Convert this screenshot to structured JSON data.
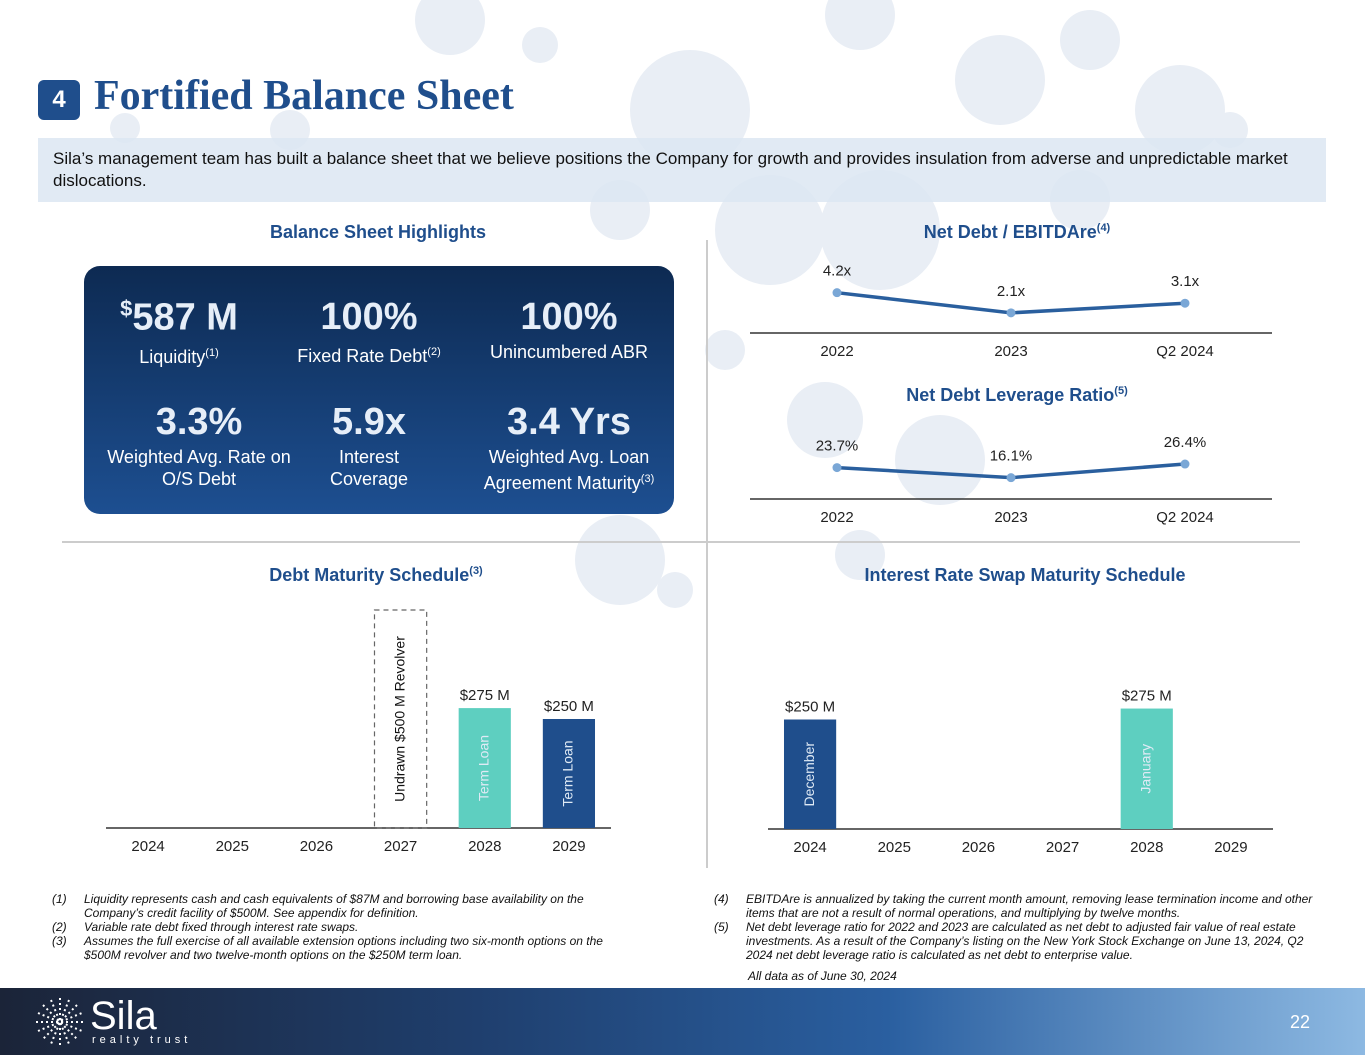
{
  "header": {
    "number": "4",
    "title": "Fortified Balance Sheet"
  },
  "intro": "Sila’s management team has built a balance sheet that we believe positions the Company for growth and provides insulation from adverse and unpredictable market dislocations.",
  "highlights": {
    "title": "Balance Sheet Highlights",
    "items": [
      {
        "prefix": "$",
        "value": "587 M",
        "label": "Liquidity",
        "note": "(1)"
      },
      {
        "value": "100%",
        "label": "Fixed Rate Debt",
        "note": "(2)"
      },
      {
        "value": "100%",
        "label": "Unincumbered ABR"
      },
      {
        "value": "3.3%",
        "label": "Weighted Avg. Rate on O/S Debt"
      },
      {
        "value": "5.9x",
        "label": "Interest Coverage"
      },
      {
        "value": "3.4 Yrs",
        "label": "Weighted Avg. Loan Agreement Maturity",
        "note": "(3)"
      }
    ]
  },
  "chart_data": [
    {
      "type": "line",
      "title": "Net Debt / EBITDAre",
      "title_note": "(4)",
      "categories": [
        "2022",
        "2023",
        "Q2 2024"
      ],
      "values": [
        4.2,
        2.1,
        3.1
      ],
      "value_labels": [
        "4.2x",
        "2.1x",
        "3.1x"
      ],
      "color": "#2a5f9e",
      "marker_color": "#7aa7d6",
      "ylim": [
        0,
        5
      ]
    },
    {
      "type": "line",
      "title": "Net Debt Leverage Ratio",
      "title_note": "(5)",
      "categories": [
        "2022",
        "2023",
        "Q2 2024"
      ],
      "values": [
        23.7,
        16.1,
        26.4
      ],
      "value_labels": [
        "23.7%",
        "16.1%",
        "26.4%"
      ],
      "color": "#2a5f9e",
      "marker_color": "#7aa7d6",
      "ylim": [
        0,
        40
      ]
    },
    {
      "type": "bar",
      "title": "Debt Maturity Schedule",
      "title_note": "(3)",
      "categories": [
        "2024",
        "2025",
        "2026",
        "2027",
        "2028",
        "2029"
      ],
      "ylim": [
        0,
        500
      ],
      "series": [
        {
          "name": "Undrawn $500 M Revolver",
          "values": [
            null,
            null,
            null,
            500,
            null,
            null
          ],
          "color": "#666666",
          "style": "dashed"
        },
        {
          "name": "Term Loan",
          "values": [
            null,
            null,
            null,
            null,
            275,
            250
          ],
          "value_labels": [
            null,
            null,
            null,
            null,
            "$275 M",
            "$250 M"
          ],
          "colors": [
            null,
            null,
            null,
            null,
            "#5ecfc0",
            "#1f4e8c"
          ]
        }
      ]
    },
    {
      "type": "bar",
      "title": "Interest Rate Swap Maturity Schedule",
      "categories": [
        "2024",
        "2025",
        "2026",
        "2027",
        "2028",
        "2029"
      ],
      "ylim": [
        0,
        500
      ],
      "series": [
        {
          "values": [
            250,
            null,
            null,
            null,
            275,
            null
          ],
          "value_labels": [
            "$250 M",
            null,
            null,
            null,
            "$275 M",
            null
          ],
          "bar_labels": [
            "December",
            null,
            null,
            null,
            "January",
            null
          ],
          "colors": [
            "#1f4e8c",
            null,
            null,
            null,
            "#5ecfc0",
            null
          ]
        }
      ]
    }
  ],
  "footnotes_left": [
    {
      "marker": "(1)",
      "text": "Liquidity represents cash and cash equivalents of $87M and borrowing base availability on the Company’s credit facility of $500M. See appendix for definition."
    },
    {
      "marker": "(2)",
      "text": "Variable rate debt fixed through interest rate swaps."
    },
    {
      "marker": "(3)",
      "text": "Assumes the full exercise of all available extension options including two six-month options on the $500M revolver and two twelve-month options on the $250M term loan."
    }
  ],
  "footnotes_right": [
    {
      "marker": "(4)",
      "text": "EBITDAre is annualized by taking the current month amount, removing lease termination income and other items that are not a result of normal operations, and multiplying by twelve months."
    },
    {
      "marker": "(5)",
      "text": "Net debt leverage ratio for 2022 and 2023 are calculated as net debt to adjusted fair value of real estate investments. As a result of the Company’s listing on the New York Stock Exchange on June 13, 2024, Q2 2024 net debt leverage ratio is calculated as net debt to enterprise value."
    }
  ],
  "as_of": "All data as of June 30, 2024",
  "footer": {
    "logo": "Sila",
    "tagline": "realty trust",
    "page": "22"
  }
}
